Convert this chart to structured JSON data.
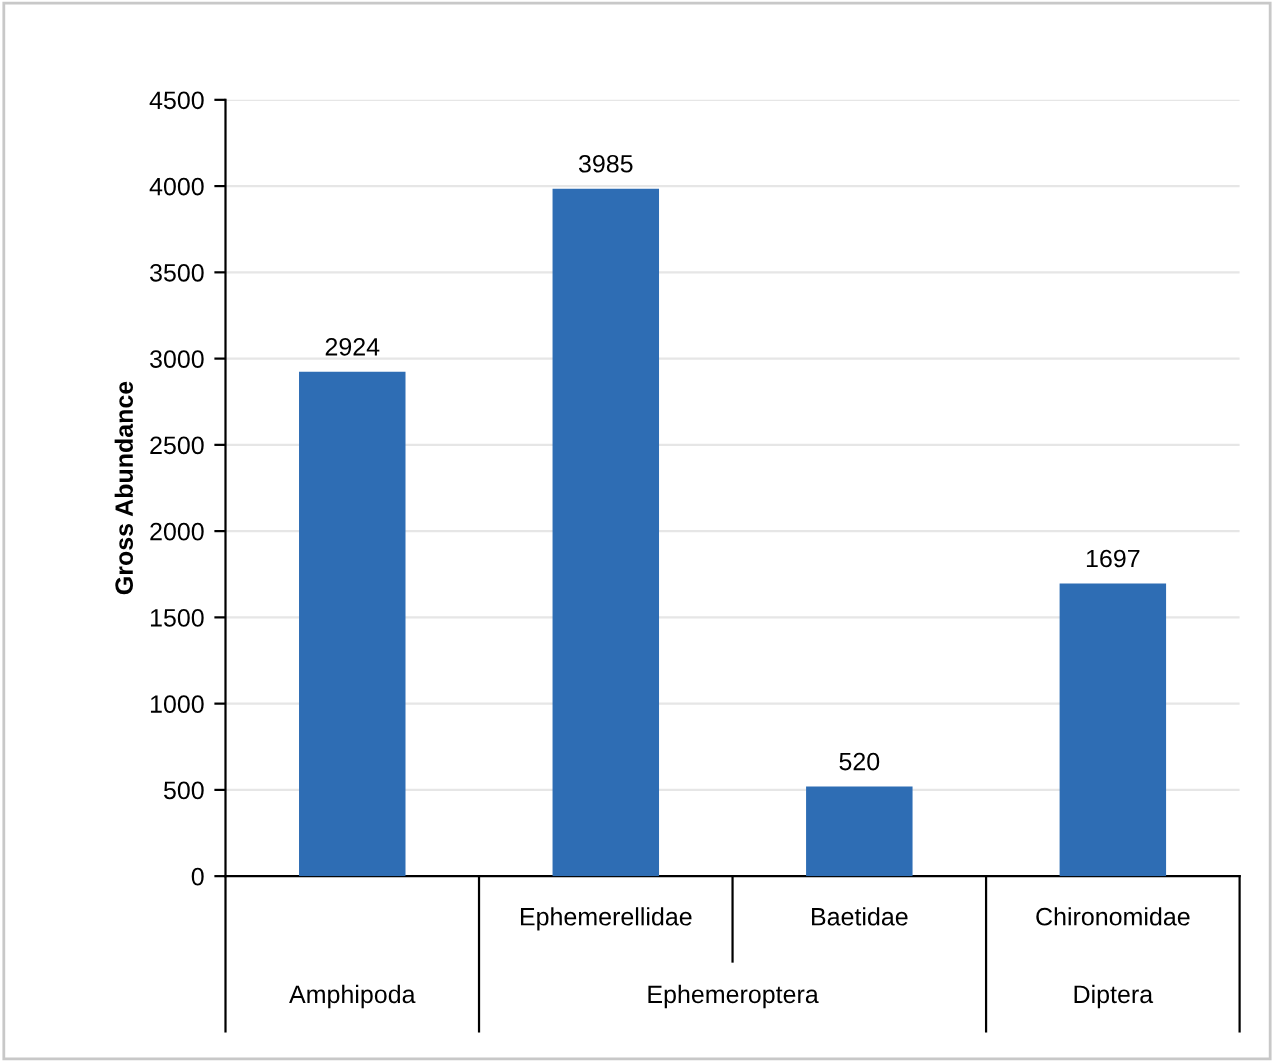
{
  "chart_data": {
    "type": "bar",
    "ylabel": "Gross Abundance",
    "categories": [
      null,
      "Ephemerellidae",
      "Baetidae",
      "Chironomidae"
    ],
    "values": [
      2924,
      3985,
      520,
      1697
    ],
    "color": "#2e6db4",
    "ylim": [
      0,
      4500
    ],
    "yticks": [
      0,
      500,
      1000,
      1500,
      2000,
      2500,
      3000,
      3500,
      4000,
      4500
    ],
    "grid": "y",
    "data_labels": true,
    "legend": false,
    "annotations": [
      "Amphipoda",
      "Ephemeroptera",
      "Diptera"
    ]
  }
}
